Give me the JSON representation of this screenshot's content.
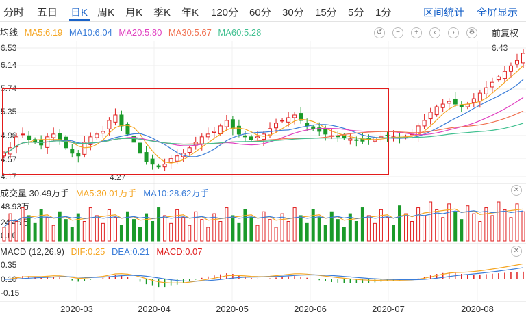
{
  "tabs": [
    {
      "label": "分时"
    },
    {
      "label": "五日"
    },
    {
      "label": "日K",
      "active": true
    },
    {
      "label": "周K"
    },
    {
      "label": "月K"
    },
    {
      "label": "季K"
    },
    {
      "label": "年K"
    },
    {
      "label": "120分"
    },
    {
      "label": "60分"
    },
    {
      "label": "30分"
    },
    {
      "label": "15分"
    },
    {
      "label": "5分"
    },
    {
      "label": "1分"
    }
  ],
  "links": {
    "range_stats": "区间统计",
    "fullscreen": "全屏显示"
  },
  "price_panel": {
    "label": "均线",
    "ma5": "MA5:6.19",
    "ma10": "MA10:6.04",
    "ma20": "MA20:5.80",
    "ma30": "MA30:5.67",
    "ma60": "MA60:5.28",
    "adjust": "前复权",
    "y_ticks": [
      "6.53",
      "6.14",
      "5.74",
      "5.35",
      "4.96",
      "4.57",
      "4.17"
    ],
    "high_mark": "6.43",
    "low_mark": "4.27"
  },
  "volume_panel": {
    "label": "成交量 30.49万手",
    "ma5": "MA5:30.01万手",
    "ma10": "MA10:28.62万手",
    "y_ticks": [
      "48.93万",
      "24.46万",
      "0.00"
    ]
  },
  "macd_panel": {
    "label": "MACD (12,26,9)",
    "dif": "DIF:0.25",
    "dea": "DEA:0.21",
    "macd": "MACD:0.07",
    "y_ticks": [
      "0.35",
      "0.10",
      "-0.15"
    ]
  },
  "x_dates": [
    "2020-03",
    "2020-04",
    "2020-05",
    "2020-06",
    "2020-07",
    "2020-08"
  ],
  "colors": {
    "up": "#e02020",
    "down": "#1a9a2a",
    "ma5": "#f5a623",
    "ma10": "#3b7dd8",
    "ma20": "#e040c0",
    "ma30": "#f07050",
    "ma60": "#40c090",
    "dif": "#f5a623",
    "dea": "#3b7dd8",
    "accent": "#1a63c9"
  },
  "chart_data": {
    "type": "candlestick",
    "ylim": [
      4.17,
      6.53
    ],
    "x_ticks": [
      "2020-03",
      "2020-04",
      "2020-05",
      "2020-06",
      "2020-07",
      "2020-08"
    ],
    "close_approx": [
      4.6,
      4.7,
      4.9,
      4.95,
      4.85,
      4.8,
      4.75,
      4.9,
      4.95,
      4.85,
      4.7,
      4.6,
      4.55,
      4.8,
      4.9,
      4.95,
      5.0,
      5.2,
      5.3,
      5.1,
      4.95,
      4.8,
      4.6,
      4.45,
      4.4,
      4.35,
      4.4,
      4.5,
      4.55,
      4.6,
      4.7,
      4.8,
      4.9,
      4.95,
      5.0,
      5.1,
      5.2,
      5.05,
      4.95,
      4.9,
      4.85,
      4.9,
      4.95,
      5.05,
      5.15,
      5.2,
      5.25,
      5.3,
      5.2,
      5.1,
      5.05,
      5.0,
      4.95,
      4.92,
      4.9,
      4.88,
      4.86,
      4.84,
      4.82,
      4.85,
      4.88,
      4.9,
      4.92,
      4.9,
      4.88,
      4.9,
      4.95,
      5.1,
      5.2,
      5.35,
      5.45,
      5.5,
      5.55,
      5.5,
      5.45,
      5.5,
      5.6,
      5.7,
      5.8,
      5.9,
      6.0,
      6.1,
      6.2,
      6.3,
      6.43
    ]
  }
}
